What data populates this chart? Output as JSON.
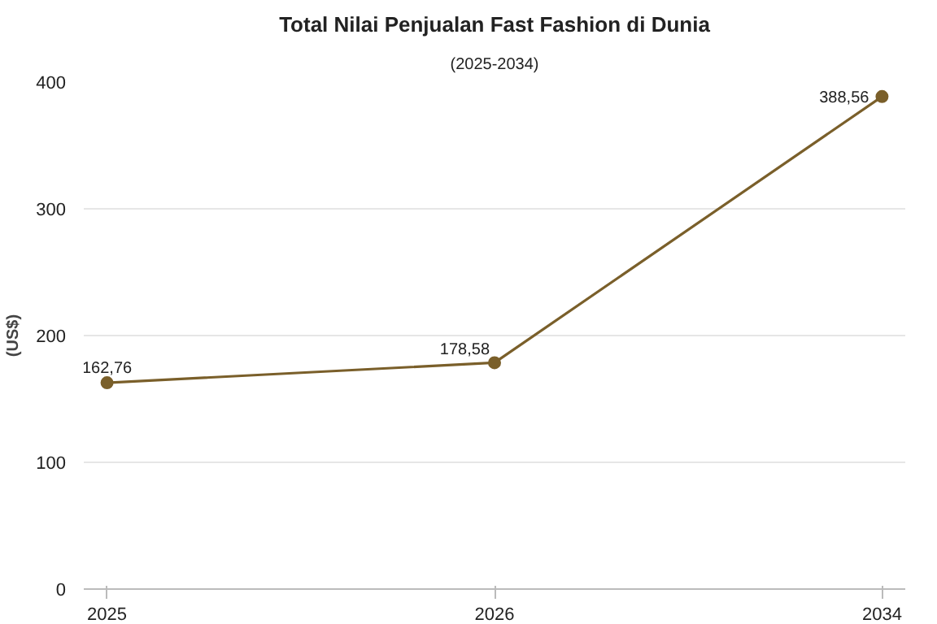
{
  "chart_data": {
    "type": "line",
    "title": "Total Nilai Penjualan Fast Fashion di Dunia",
    "subtitle": "(2025-2034)",
    "ylabel": "(US$)",
    "categories": [
      "2025",
      "2026",
      "2034"
    ],
    "series": [
      {
        "color": "#7a5f2a",
        "values": [
          162.76,
          178.58,
          388.56
        ],
        "value_labels": [
          "162,76",
          "178,58",
          "388,56"
        ]
      }
    ],
    "ylim": [
      0,
      400
    ],
    "yticks": [
      0,
      100,
      200,
      300,
      400
    ],
    "grid": "y",
    "marker": "circle",
    "line_style": "solid"
  }
}
